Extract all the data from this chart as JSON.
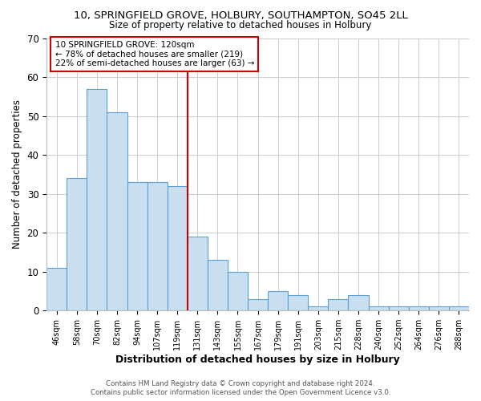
{
  "title1": "10, SPRINGFIELD GROVE, HOLBURY, SOUTHAMPTON, SO45 2LL",
  "title2": "Size of property relative to detached houses in Holbury",
  "xlabel": "Distribution of detached houses by size in Holbury",
  "ylabel": "Number of detached properties",
  "bins": [
    "46sqm",
    "58sqm",
    "70sqm",
    "82sqm",
    "94sqm",
    "107sqm",
    "119sqm",
    "131sqm",
    "143sqm",
    "155sqm",
    "167sqm",
    "179sqm",
    "191sqm",
    "203sqm",
    "215sqm",
    "228sqm",
    "240sqm",
    "252sqm",
    "264sqm",
    "276sqm",
    "288sqm"
  ],
  "values": [
    11,
    34,
    57,
    51,
    33,
    33,
    32,
    19,
    13,
    10,
    3,
    5,
    4,
    1,
    3,
    4,
    1,
    1,
    1,
    1,
    1
  ],
  "bar_color": "#c9dff0",
  "bar_edge_color": "#5a9fd4",
  "property_bin_index": 6,
  "vline_color": "#cc0000",
  "annotation_line1": "10 SPRINGFIELD GROVE: 120sqm",
  "annotation_line2": "← 78% of detached houses are smaller (219)",
  "annotation_line3": "22% of semi-detached houses are larger (63) →",
  "annotation_box_color": "#ffffff",
  "annotation_box_edge": "#cc0000",
  "footer1": "Contains HM Land Registry data © Crown copyright and database right 2024.",
  "footer2": "Contains public sector information licensed under the Open Government Licence v3.0.",
  "ylim": [
    0,
    70
  ],
  "background_color": "#ffffff",
  "grid_color": "#cccccc"
}
